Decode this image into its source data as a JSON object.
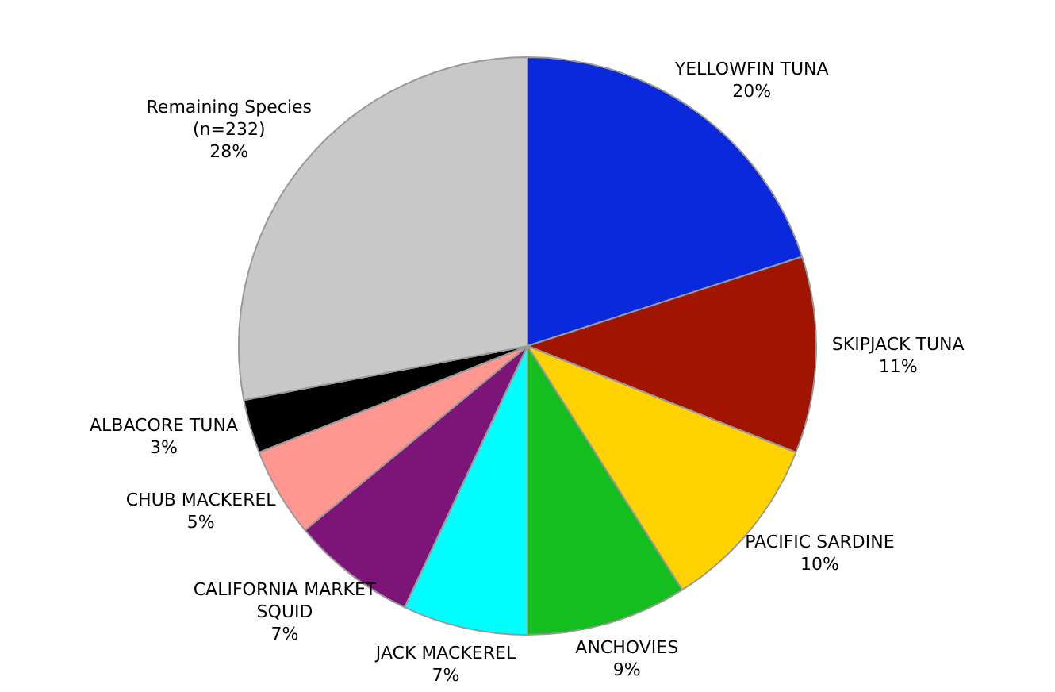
{
  "chart_data": {
    "type": "pie",
    "categories": [
      "YELLOWFIN TUNA",
      "SKIPJACK TUNA",
      "PACIFIC SARDINE",
      "ANCHOVIES",
      "JACK MACKEREL",
      "CALIFORNIA MARKET SQUID",
      "CHUB MACKEREL",
      "ALBACORE TUNA",
      "Remaining Species (n=232)"
    ],
    "values": [
      20,
      11,
      10,
      9,
      7,
      7,
      5,
      3,
      28
    ],
    "colors": [
      "#0a28dc",
      "#a01400",
      "#ffd200",
      "#14be1e",
      "#00ffff",
      "#7d1478",
      "#ff9690",
      "#000000",
      "#c8c8c8"
    ],
    "value_labels": [
      "20%",
      "11%",
      "10%",
      "9%",
      "7%",
      "7%",
      "5%",
      "3%",
      "28%"
    ],
    "legend": false
  }
}
